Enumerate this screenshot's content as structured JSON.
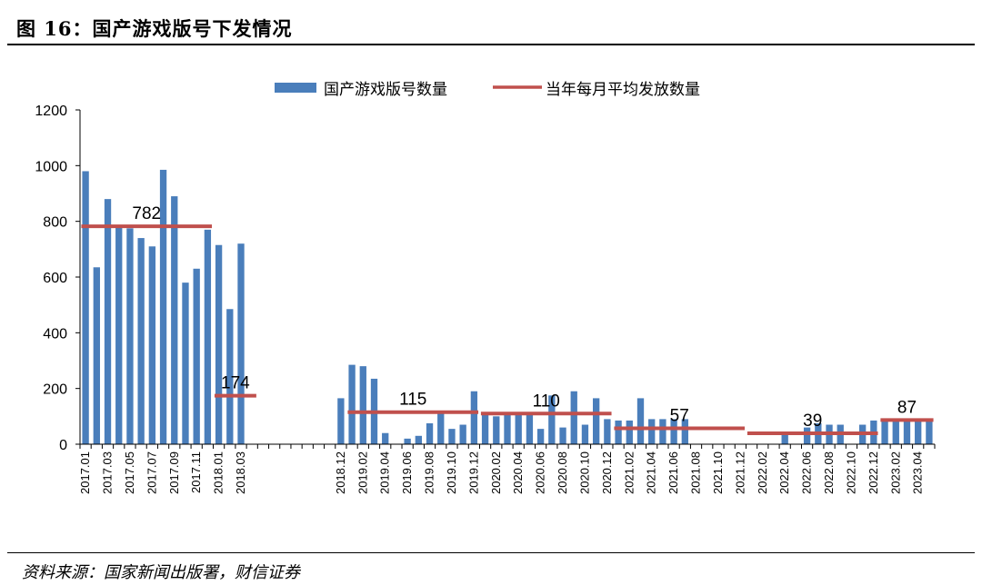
{
  "header": {
    "title": "图 16：国产游戏版号下发情况"
  },
  "footer": {
    "source": "资料来源：国家新闻出版署，财信证券"
  },
  "colors": {
    "bar": "#4a7ebb",
    "line": "#c0504d"
  },
  "chart_data": {
    "type": "bar",
    "title": "图 16：国产游戏版号下发情况",
    "xlabel": "",
    "ylabel": "",
    "ylim": [
      0,
      1200
    ],
    "yticks": [
      "0",
      "200",
      "400",
      "600",
      "800",
      "1000",
      "1200"
    ],
    "legend": {
      "position": "top",
      "bar_label": "国产游戏版号数量",
      "line_label": "当年每月平均发放数量"
    },
    "categories": [
      "2017.01",
      "2017.02",
      "2017.03",
      "2017.04",
      "2017.05",
      "2017.06",
      "2017.07",
      "2017.08",
      "2017.09",
      "2017.10",
      "2017.11",
      "2017.12",
      "2018.01",
      "2018.02",
      "2018.03",
      "2018.04",
      "2018.05",
      "2018.06",
      "2018.07",
      "2018.08",
      "2018.09",
      "2018.10",
      "2018.11",
      "2018.12",
      "2019.01",
      "2019.02",
      "2019.03",
      "2019.04",
      "2019.05",
      "2019.06",
      "2019.07",
      "2019.08",
      "2019.09",
      "2019.10",
      "2019.11",
      "2019.12",
      "2020.01",
      "2020.02",
      "2020.03",
      "2020.04",
      "2020.05",
      "2020.06",
      "2020.07",
      "2020.08",
      "2020.09",
      "2020.10",
      "2020.11",
      "2020.12",
      "2021.01",
      "2021.02",
      "2021.03",
      "2021.04",
      "2021.05",
      "2021.06",
      "2021.07",
      "2021.08",
      "2021.09",
      "2021.10",
      "2021.11",
      "2021.12",
      "2022.01",
      "2022.02",
      "2022.03",
      "2022.04",
      "2022.05",
      "2022.06",
      "2022.07",
      "2022.08",
      "2022.09",
      "2022.10",
      "2022.11",
      "2022.12",
      "2023.01",
      "2023.02",
      "2023.03",
      "2023.04",
      "2023.05"
    ],
    "x_tick_labels": [
      "2017.01",
      "2017.03",
      "2017.05",
      "2017.07",
      "2017.09",
      "2017.11",
      "2018.01",
      "2018.03",
      "2018.12",
      "2019.02",
      "2019.04",
      "2019.06",
      "2019.08",
      "2019.10",
      "2019.12",
      "2020.02",
      "2020.04",
      "2020.06",
      "2020.08",
      "2020.10",
      "2020.12",
      "2021.02",
      "2021.04",
      "2021.06",
      "2021.08",
      "2021.10",
      "2021.12",
      "2022.02",
      "2022.04",
      "2022.06",
      "2022.08",
      "2022.10",
      "2022.12",
      "2023.02",
      "2023.04"
    ],
    "series": [
      {
        "name": "国产游戏版号数量",
        "type": "bar",
        "values": [
          980,
          635,
          880,
          785,
          775,
          740,
          710,
          985,
          890,
          580,
          630,
          770,
          715,
          485,
          720,
          0,
          0,
          0,
          0,
          0,
          0,
          0,
          0,
          165,
          285,
          280,
          235,
          40,
          0,
          20,
          30,
          75,
          110,
          55,
          70,
          190,
          105,
          100,
          110,
          110,
          105,
          55,
          175,
          60,
          190,
          70,
          165,
          90,
          85,
          85,
          165,
          90,
          90,
          90,
          90,
          0,
          0,
          0,
          0,
          0,
          0,
          0,
          0,
          45,
          0,
          60,
          75,
          70,
          70,
          0,
          70,
          85,
          85,
          85,
          85,
          85,
          90
        ]
      },
      {
        "name": "当年每月平均发放数量",
        "type": "line",
        "segments": [
          {
            "from": "2017.01",
            "to": "2017.12",
            "value": 782,
            "label": "782"
          },
          {
            "from": "2018.01",
            "to": "2018.04",
            "value": 174,
            "label": "174"
          },
          {
            "from": "2019.01",
            "to": "2019.12",
            "value": 115,
            "label": "115"
          },
          {
            "from": "2020.01",
            "to": "2020.12",
            "value": 110,
            "label": "110"
          },
          {
            "from": "2021.01",
            "to": "2021.12",
            "value": 57,
            "label": "57"
          },
          {
            "from": "2022.01",
            "to": "2022.12",
            "value": 39,
            "label": "39"
          },
          {
            "from": "2023.01",
            "to": "2023.05",
            "value": 87,
            "label": "87"
          }
        ]
      }
    ]
  }
}
